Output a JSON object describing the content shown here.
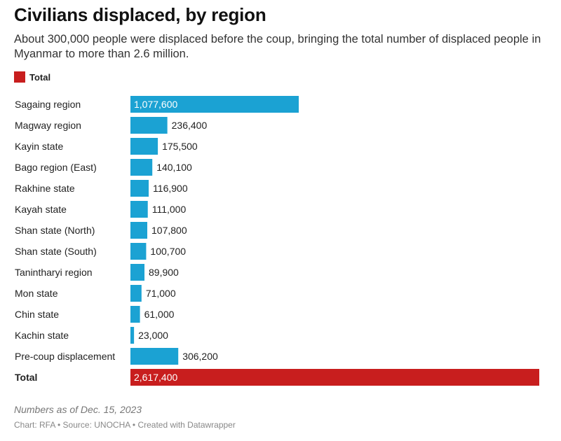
{
  "title": "Civilians displaced, by region",
  "subtitle": "About 300,000 people were displaced before the coup, bringing the total number of displaced people in Myanmar to more than 2.6 million.",
  "legend": {
    "label": "Total",
    "color": "#c81e1e"
  },
  "note": "Numbers as of Dec. 15, 2023",
  "credit": "Chart: RFA • Source: UNOCHA • Created with Datawrapper",
  "colors": {
    "bar": "#1ba2d3",
    "total": "#c81e1e",
    "label_inside": "#ffffff",
    "label_outside": "#222222"
  },
  "chart_data": {
    "type": "bar",
    "orientation": "horizontal",
    "categories": [
      "Sagaing region",
      "Magway region",
      "Kayin state",
      "Bago region (East)",
      "Rakhine state",
      "Kayah state",
      "Shan state (North)",
      "Shan state (South)",
      "Tanintharyi region",
      "Mon state",
      "Chin state",
      "Kachin state",
      "Pre-coup displacement",
      "Total"
    ],
    "values": [
      1077600,
      236400,
      175500,
      140100,
      116900,
      111000,
      107800,
      100700,
      89900,
      71000,
      61000,
      23000,
      306200,
      2617400
    ],
    "labels": [
      "1,077,600",
      "236,400",
      "175,500",
      "140,100",
      "116,900",
      "111,000",
      "107,800",
      "100,700",
      "89,900",
      "71,000",
      "61,000",
      "23,000",
      "306,200",
      "2,617,400"
    ],
    "highlight": [
      false,
      false,
      false,
      false,
      false,
      false,
      false,
      false,
      false,
      false,
      false,
      false,
      false,
      true
    ],
    "xlim": [
      0,
      2617400
    ],
    "grid": false
  }
}
